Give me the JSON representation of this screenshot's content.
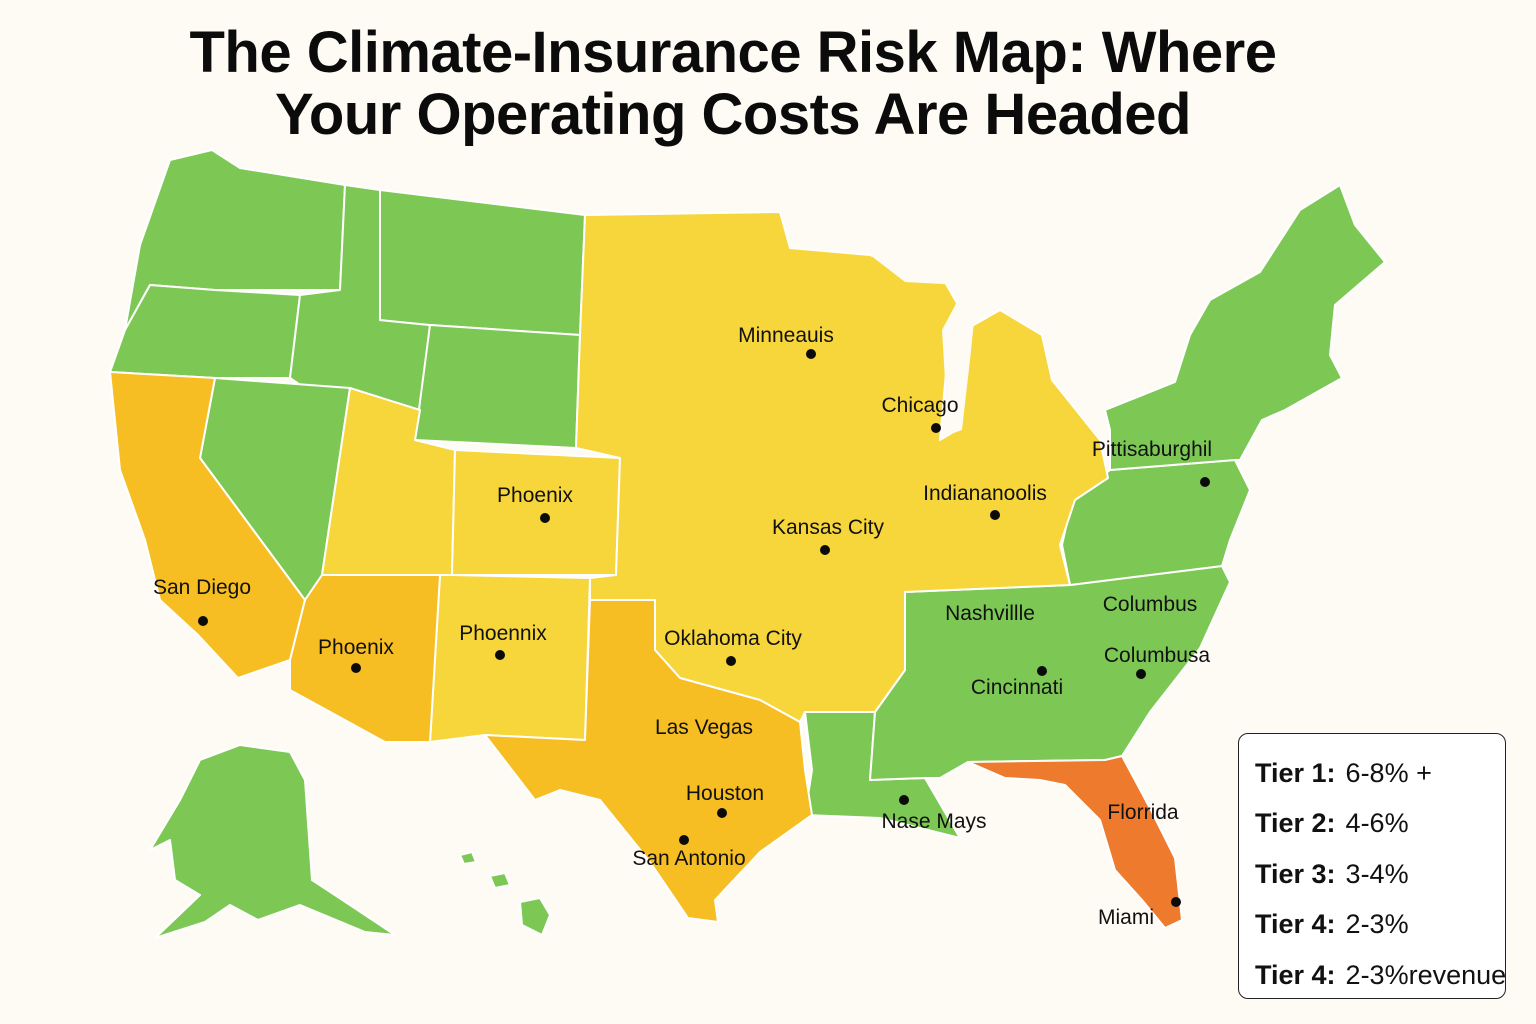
{
  "title": {
    "line1": "The Climate-Insurance Risk Map: Where",
    "line2": "Your Operating Costs Are Headed"
  },
  "colors": {
    "green": "#7dc855",
    "yellow": "#f7d63b",
    "amber": "#f6be22",
    "orange": "#ee7a2e",
    "border": "#ffffff"
  },
  "cities": [
    {
      "id": "minneapolis",
      "label": "Minneauis"
    },
    {
      "id": "chicago",
      "label": "Chicago"
    },
    {
      "id": "pittsburgh",
      "label": "Pittisaburghil"
    },
    {
      "id": "indianapolis",
      "label": "Indiananoolis"
    },
    {
      "id": "phoenix-co",
      "label": "Phoenix"
    },
    {
      "id": "kansas-city",
      "label": "Kansas City"
    },
    {
      "id": "san-diego",
      "label": "San Diego"
    },
    {
      "id": "phoenix-az",
      "label": "Phoenix"
    },
    {
      "id": "phoenix-nm",
      "label": "Phoennix"
    },
    {
      "id": "oklahoma-city",
      "label": "Oklahoma City"
    },
    {
      "id": "nashville",
      "label": "Nashvillle"
    },
    {
      "id": "columbus",
      "label": "Columbus"
    },
    {
      "id": "columbusa",
      "label": "Columbusa"
    },
    {
      "id": "cincinnati",
      "label": "Cincinnati"
    },
    {
      "id": "las-vegas",
      "label": "Las Vegas"
    },
    {
      "id": "houston",
      "label": "Houston"
    },
    {
      "id": "san-antonio",
      "label": "San Antonio"
    },
    {
      "id": "nase-mays",
      "label": "Nase Mays"
    },
    {
      "id": "florrida",
      "label": "Florrida"
    },
    {
      "id": "miami",
      "label": "Miami"
    }
  ],
  "legend": [
    {
      "tier": "Tier 1:",
      "range": "6-8% +"
    },
    {
      "tier": "Tier 2:",
      "range": "4-6%"
    },
    {
      "tier": "Tier 3:",
      "range": "3-4%"
    },
    {
      "tier": "Tier 4:",
      "range": "2-3%"
    },
    {
      "tier": "Tier 4:",
      "range": "2-3%revenue"
    }
  ]
}
